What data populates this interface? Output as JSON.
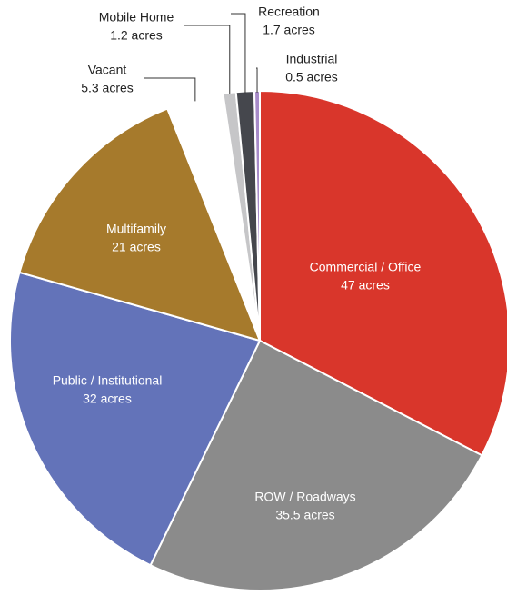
{
  "chart_data": {
    "type": "pie",
    "categories": [
      "Commercial / Office",
      "ROW / Roadways",
      "Public / Institutional",
      "Multifamily",
      "Vacant",
      "Mobile Home",
      "Recreation",
      "Industrial"
    ],
    "values": [
      47,
      35.5,
      32,
      21,
      5.3,
      1.2,
      1.7,
      0.5
    ],
    "value_labels": [
      "47 acres",
      "35.5 acres",
      "32 acres",
      "21 acres",
      "5.3 acres",
      "1.2 acres",
      "1.7 acres",
      "0.5 acres"
    ],
    "colors": [
      "#d9362b",
      "#8b8b8b",
      "#6373b9",
      "#a67a2c",
      "#ffffff",
      "#c6c6c8",
      "#45474d",
      "#a78bc9"
    ]
  }
}
